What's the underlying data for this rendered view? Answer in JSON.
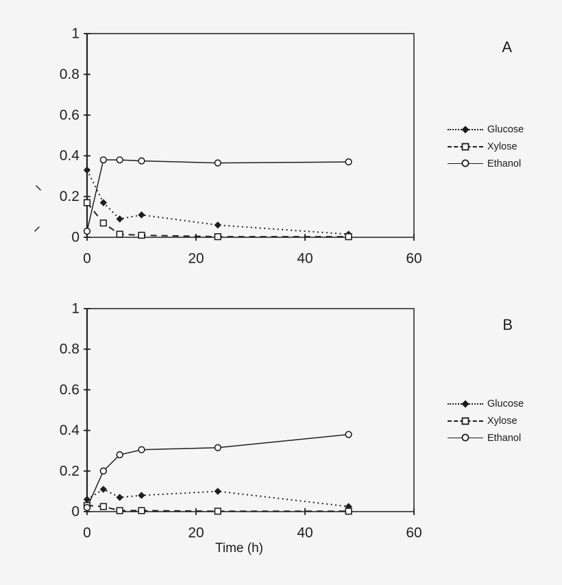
{
  "figure": {
    "background": "#f5f5f5",
    "ink": "#1f1f1f",
    "marker_fill": "#fbfbfb"
  },
  "panels": [
    {
      "label": "A"
    },
    {
      "label": "B"
    }
  ],
  "legend": {
    "items": [
      {
        "label": "Glucose",
        "marker": "filled-diamond",
        "line": "dotted"
      },
      {
        "label": "Xylose",
        "marker": "open-square",
        "line": "dashed"
      },
      {
        "label": "Ethanol",
        "marker": "open-circle",
        "line": "solid"
      }
    ]
  },
  "chart_data": [
    {
      "type": "line",
      "panel": "A",
      "title": "",
      "xlabel": "",
      "ylabel": "",
      "xlim": [
        0,
        60
      ],
      "ylim": [
        0,
        1
      ],
      "x_ticks": [
        0,
        20,
        40,
        60
      ],
      "x_tick_labels": [
        "0",
        "20",
        "40",
        "60"
      ],
      "y_ticks": [
        0,
        0.2,
        0.4,
        0.6,
        0.8,
        1
      ],
      "y_tick_labels": [
        "0",
        "0.2",
        "0.4",
        "0.6",
        "0.8",
        "1"
      ],
      "grid": false,
      "legend_position": "right",
      "x": [
        0,
        3,
        6,
        10,
        24,
        48
      ],
      "series": [
        {
          "name": "Glucose",
          "line": "dotted",
          "marker": "filled-diamond",
          "values": [
            0.33,
            0.17,
            0.09,
            0.11,
            0.06,
            0.015
          ]
        },
        {
          "name": "Xylose",
          "line": "dashed",
          "marker": "open-square",
          "values": [
            0.17,
            0.07,
            0.015,
            0.01,
            0.003,
            0.003
          ]
        },
        {
          "name": "Ethanol",
          "line": "solid",
          "marker": "open-circle",
          "values": [
            0.03,
            0.38,
            0.38,
            0.375,
            0.365,
            0.37
          ]
        }
      ]
    },
    {
      "type": "line",
      "panel": "B",
      "title": "",
      "xlabel": "Time (h)",
      "ylabel": "",
      "xlim": [
        0,
        60
      ],
      "ylim": [
        0,
        1
      ],
      "x_ticks": [
        0,
        20,
        40,
        60
      ],
      "x_tick_labels": [
        "0",
        "20",
        "40",
        "60"
      ],
      "y_ticks": [
        0,
        0.2,
        0.4,
        0.6,
        0.8,
        1
      ],
      "y_tick_labels": [
        "0",
        "0.2",
        "0.4",
        "0.6",
        "0.8",
        "1"
      ],
      "grid": false,
      "legend_position": "right",
      "x": [
        0,
        3,
        6,
        10,
        24,
        48
      ],
      "series": [
        {
          "name": "Glucose",
          "line": "dotted",
          "marker": "filled-diamond",
          "values": [
            0.06,
            0.11,
            0.07,
            0.08,
            0.1,
            0.025
          ]
        },
        {
          "name": "Xylose",
          "line": "dashed",
          "marker": "open-square",
          "values": [
            0.03,
            0.025,
            0.005,
            0.005,
            0.002,
            0.002
          ]
        },
        {
          "name": "Ethanol",
          "line": "solid",
          "marker": "open-circle",
          "values": [
            0.02,
            0.2,
            0.28,
            0.305,
            0.315,
            0.38
          ]
        }
      ]
    }
  ]
}
